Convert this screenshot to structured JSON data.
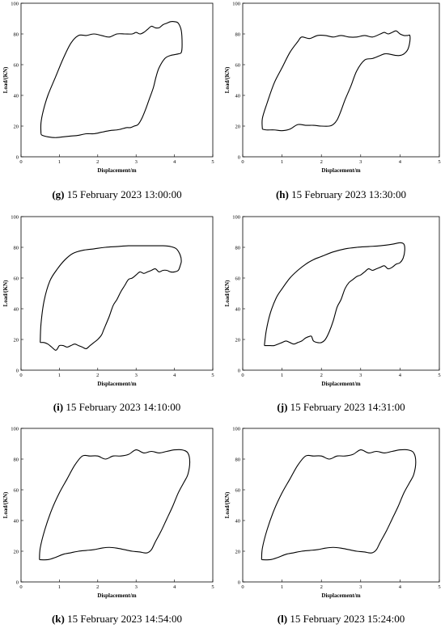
{
  "chart_data": [
    {
      "type": "line",
      "caption_letter": "(g)",
      "caption_text": " 15 February 2023 13:00:00",
      "xlabel": "Displacement/m",
      "ylabel": "Load/(KN)",
      "xlim": [
        0,
        5
      ],
      "ylim": [
        0,
        100
      ],
      "xticks": [
        0,
        1,
        2,
        3,
        4,
        5
      ],
      "yticks": [
        0,
        20,
        40,
        60,
        80,
        100
      ],
      "series": [
        {
          "x": [
            0.52,
            0.52,
            0.58,
            0.7,
            0.9,
            1.1,
            1.3,
            1.5,
            1.7,
            1.9,
            2.1,
            2.3,
            2.5,
            2.7,
            2.9,
            3.0,
            3.1,
            3.2,
            3.3,
            3.4,
            3.5,
            3.6,
            3.7,
            3.8,
            3.9,
            4.0,
            4.1,
            4.18,
            4.2,
            4.18,
            4.1,
            3.9,
            3.75,
            3.6,
            3.52,
            3.45,
            3.35,
            3.25,
            3.15,
            3.05,
            2.95,
            2.85,
            2.75,
            2.6,
            2.5,
            2.3,
            2.1,
            1.9,
            1.7,
            1.5,
            1.3,
            1.1,
            0.9,
            0.7,
            0.55,
            0.52
          ],
          "y": [
            15,
            22,
            30,
            40,
            52,
            64,
            74,
            79,
            79,
            80,
            79,
            78,
            80,
            80,
            80,
            81,
            80,
            81,
            83,
            85,
            84,
            84,
            86,
            87,
            88,
            88,
            87,
            82,
            73,
            68,
            67,
            66,
            64,
            58,
            52,
            45,
            38,
            31,
            25,
            21,
            20,
            19,
            19,
            18,
            17.5,
            17,
            16,
            15,
            15,
            14,
            13.5,
            13,
            12.5,
            13,
            14,
            15
          ]
        }
      ]
    },
    {
      "type": "line",
      "caption_letter": "(h)",
      "caption_text": " 15 February 2023 13:30:00",
      "xlabel": "Displacement/m",
      "ylabel": "Load/(KN)",
      "xlim": [
        0,
        5
      ],
      "ylim": [
        0,
        100
      ],
      "xticks": [
        0,
        1,
        2,
        3,
        4,
        5
      ],
      "yticks": [
        0,
        20,
        40,
        60,
        80,
        100
      ],
      "series": [
        {
          "x": [
            0.5,
            0.5,
            0.62,
            0.8,
            1.0,
            1.2,
            1.4,
            1.5,
            1.7,
            1.9,
            2.1,
            2.3,
            2.5,
            2.7,
            2.9,
            3.1,
            3.3,
            3.5,
            3.6,
            3.7,
            3.8,
            3.9,
            4.0,
            4.1,
            4.2,
            4.25,
            4.25,
            4.2,
            4.1,
            4.0,
            3.9,
            3.7,
            3.6,
            3.5,
            3.3,
            3.1,
            2.9,
            2.75,
            2.6,
            2.5,
            2.4,
            2.3,
            2.2,
            2.0,
            1.8,
            1.6,
            1.4,
            1.2,
            1.0,
            0.8,
            0.6,
            0.5
          ],
          "y": [
            18,
            25,
            35,
            48,
            58,
            68,
            75,
            78,
            77,
            79,
            79,
            78,
            79,
            78,
            78,
            79,
            78,
            80,
            81,
            80,
            81,
            82,
            80,
            79,
            79,
            79,
            75,
            70,
            67,
            66,
            66,
            67,
            67,
            66,
            64,
            63,
            56,
            46,
            37,
            30,
            24,
            21,
            20,
            20,
            20.5,
            20.5,
            21,
            18,
            17,
            17.5,
            17.5,
            18
          ]
        }
      ]
    },
    {
      "type": "line",
      "caption_letter": "(i)",
      "caption_text": " 15 February 2023 14:10:00",
      "xlabel": "Displacement/m",
      "ylabel": "Load/(KN)",
      "xlim": [
        0,
        5
      ],
      "ylim": [
        0,
        100
      ],
      "xticks": [
        0,
        1,
        2,
        3,
        4,
        5
      ],
      "yticks": [
        0,
        20,
        40,
        60,
        80,
        100
      ],
      "series": [
        {
          "x": [
            0.5,
            0.52,
            0.6,
            0.75,
            0.95,
            1.15,
            1.35,
            1.6,
            1.9,
            2.2,
            2.5,
            2.8,
            3.1,
            3.4,
            3.7,
            3.9,
            4.05,
            4.15,
            4.18,
            4.15,
            4.1,
            4.0,
            3.9,
            3.8,
            3.7,
            3.6,
            3.5,
            3.4,
            3.3,
            3.2,
            3.1,
            3.0,
            2.9,
            2.8,
            2.7,
            2.6,
            2.5,
            2.4,
            2.3,
            2.2,
            2.15,
            2.1,
            2.0,
            1.9,
            1.8,
            1.7,
            1.6,
            1.5,
            1.4,
            1.3,
            1.2,
            1.1,
            1.0,
            0.95,
            0.9,
            0.8,
            0.7,
            0.6,
            0.5
          ],
          "y": [
            18,
            30,
            45,
            58,
            66,
            72,
            76,
            78,
            79,
            80,
            80.5,
            81,
            81,
            81,
            81,
            80.5,
            79,
            75,
            71,
            68,
            65,
            64,
            64,
            65,
            65,
            64,
            66,
            65,
            64,
            63,
            64,
            62,
            60,
            59,
            55,
            51,
            46,
            42,
            35,
            29,
            26,
            23,
            20,
            18,
            16,
            14,
            15,
            16,
            17,
            16,
            15,
            16,
            16,
            14,
            13,
            15,
            17,
            18,
            18
          ]
        }
      ]
    },
    {
      "type": "line",
      "caption_letter": "(j)",
      "caption_text": " 15 February 2023 14:31:00",
      "xlabel": "Displacement/m",
      "ylabel": "Load/(KN)",
      "xlim": [
        0,
        5
      ],
      "ylim": [
        0,
        100
      ],
      "xticks": [
        0,
        1,
        2,
        3,
        4,
        5
      ],
      "yticks": [
        0,
        20,
        40,
        60,
        80,
        100
      ],
      "series": [
        {
          "x": [
            0.55,
            0.6,
            0.7,
            0.85,
            1.0,
            1.2,
            1.4,
            1.6,
            1.8,
            2.0,
            2.3,
            2.6,
            2.9,
            3.2,
            3.5,
            3.8,
            4.0,
            4.1,
            4.12,
            4.08,
            4.0,
            3.9,
            3.8,
            3.7,
            3.6,
            3.5,
            3.4,
            3.3,
            3.2,
            3.1,
            3.0,
            2.9,
            2.8,
            2.7,
            2.6,
            2.5,
            2.4,
            2.3,
            2.2,
            2.1,
            2.0,
            1.9,
            1.8,
            1.75,
            1.7,
            1.6,
            1.5,
            1.4,
            1.3,
            1.2,
            1.1,
            1.0,
            0.9,
            0.8,
            0.7,
            0.6,
            0.55
          ],
          "y": [
            16,
            26,
            37,
            47,
            53,
            60,
            65,
            69,
            72,
            74,
            77,
            79,
            80,
            80.5,
            81,
            82,
            83,
            82,
            78,
            73,
            70,
            69,
            67,
            66,
            68,
            67,
            66,
            65,
            66,
            64,
            62,
            61,
            59,
            57,
            53,
            46,
            41,
            32,
            25,
            20,
            18,
            18,
            19,
            22,
            22,
            21,
            19,
            18,
            17,
            18,
            19,
            18,
            17,
            16,
            16,
            16,
            16
          ]
        }
      ]
    },
    {
      "type": "line",
      "caption_letter": "(k)",
      "caption_text": " 15 February 2023 14:54:00",
      "xlabel": "Displacement/m",
      "ylabel": "Load/(KN)",
      "xlim": [
        0,
        5
      ],
      "ylim": [
        0,
        100
      ],
      "xticks": [
        0,
        1,
        2,
        3,
        4,
        5
      ],
      "yticks": [
        0,
        20,
        40,
        60,
        80,
        100
      ],
      "series": [
        {
          "x": [
            0.48,
            0.5,
            0.62,
            0.8,
            1.0,
            1.2,
            1.4,
            1.6,
            1.8,
            2.0,
            2.2,
            2.4,
            2.6,
            2.8,
            3.0,
            3.2,
            3.4,
            3.6,
            3.8,
            4.0,
            4.2,
            4.35,
            4.4,
            4.35,
            4.25,
            4.1,
            3.95,
            3.8,
            3.65,
            3.5,
            3.4,
            3.3,
            3.2,
            3.1,
            2.9,
            2.7,
            2.5,
            2.3,
            2.1,
            1.9,
            1.7,
            1.5,
            1.3,
            1.1,
            0.9,
            0.7,
            0.48
          ],
          "y": [
            14.5,
            22,
            34,
            47,
            58,
            67,
            76,
            82,
            82,
            82,
            80,
            82,
            82,
            83,
            86,
            84,
            85,
            84,
            85,
            86,
            86,
            84,
            78,
            70,
            65,
            58,
            49,
            41,
            33,
            26,
            21,
            19,
            19,
            19.5,
            20,
            21,
            22,
            22.5,
            22,
            21,
            20.5,
            20,
            19,
            18,
            16,
            14.5,
            14.5
          ]
        }
      ]
    },
    {
      "type": "line",
      "caption_letter": "(l)",
      "caption_text": " 15 February 2023 15:24:00",
      "xlabel": "Displacement/m",
      "ylabel": "Load/(KN)",
      "xlim": [
        0,
        5
      ],
      "ylim": [
        0,
        100
      ],
      "xticks": [
        0,
        1,
        2,
        3,
        4,
        5
      ],
      "yticks": [
        0,
        20,
        40,
        60,
        80,
        100
      ],
      "series": [
        {
          "x": [
            0.48,
            0.5,
            0.62,
            0.8,
            1.0,
            1.2,
            1.4,
            1.6,
            1.8,
            2.0,
            2.2,
            2.4,
            2.6,
            2.8,
            3.0,
            3.2,
            3.4,
            3.6,
            3.8,
            4.0,
            4.2,
            4.35,
            4.4,
            4.35,
            4.25,
            4.1,
            3.95,
            3.8,
            3.65,
            3.5,
            3.4,
            3.3,
            3.2,
            3.1,
            2.9,
            2.7,
            2.5,
            2.3,
            2.1,
            1.9,
            1.7,
            1.5,
            1.3,
            1.1,
            0.9,
            0.7,
            0.48
          ],
          "y": [
            14.5,
            22,
            34,
            47,
            58,
            67,
            76,
            82,
            82,
            82,
            80,
            82,
            82,
            83,
            86,
            84,
            85,
            84,
            85,
            86,
            86,
            84,
            78,
            70,
            65,
            58,
            49,
            41,
            33,
            26,
            21,
            19,
            19,
            19.5,
            20,
            21,
            22,
            22.5,
            22,
            21,
            20.5,
            20,
            19,
            18,
            16,
            14.5,
            14.5
          ]
        }
      ]
    }
  ]
}
